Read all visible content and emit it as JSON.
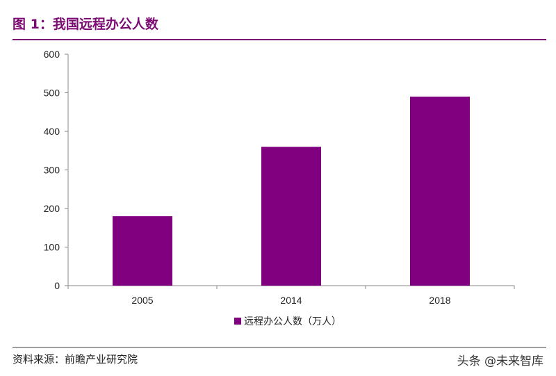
{
  "figure": {
    "title": "图 1：我国远程办公人数",
    "source": "资料来源：前瞻产业研究院",
    "watermark": "头条 @未来智库"
  },
  "colors": {
    "bar": "#800080",
    "title": "#7b0b73",
    "axis": "#888888"
  },
  "chart_data": {
    "type": "bar",
    "title": "",
    "xlabel": "",
    "ylabel": "",
    "categories": [
      "2005",
      "2014",
      "2018"
    ],
    "series": [
      {
        "name": "远程办公人数（万人）",
        "values": [
          180,
          360,
          490
        ]
      }
    ],
    "ylim": [
      0,
      600
    ],
    "yticks": [
      0,
      100,
      200,
      300,
      400,
      500,
      600
    ],
    "grid": false,
    "legend": "bottom-center"
  }
}
